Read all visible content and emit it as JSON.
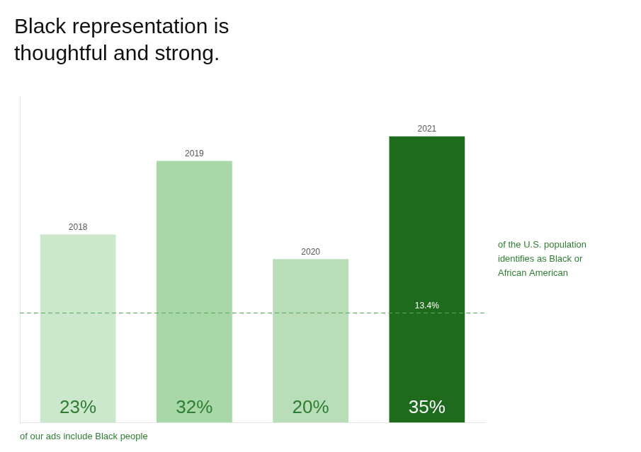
{
  "chart_data": {
    "type": "bar",
    "title": "Black representation is\nthoughtful and strong.",
    "categories": [
      "2018",
      "2019",
      "2020",
      "2021"
    ],
    "values": [
      23,
      32,
      20,
      35
    ],
    "colors": [
      "#cce8cc",
      "#a8d8a8",
      "#b8ddb8",
      "#1e6b1e"
    ],
    "ylim": [
      0,
      40
    ],
    "yticks": [],
    "grid": false,
    "tick_labels": false,
    "data_labels": true,
    "value_labels": [
      "23%",
      "32%",
      "20%",
      "35%"
    ],
    "xlabel": "of our ads include Black people",
    "reference_line": {
      "value": 13.4,
      "label": "13.4%"
    },
    "reference_text": "of the U.S. population\nidentifies as Black or\nAfrican American"
  }
}
